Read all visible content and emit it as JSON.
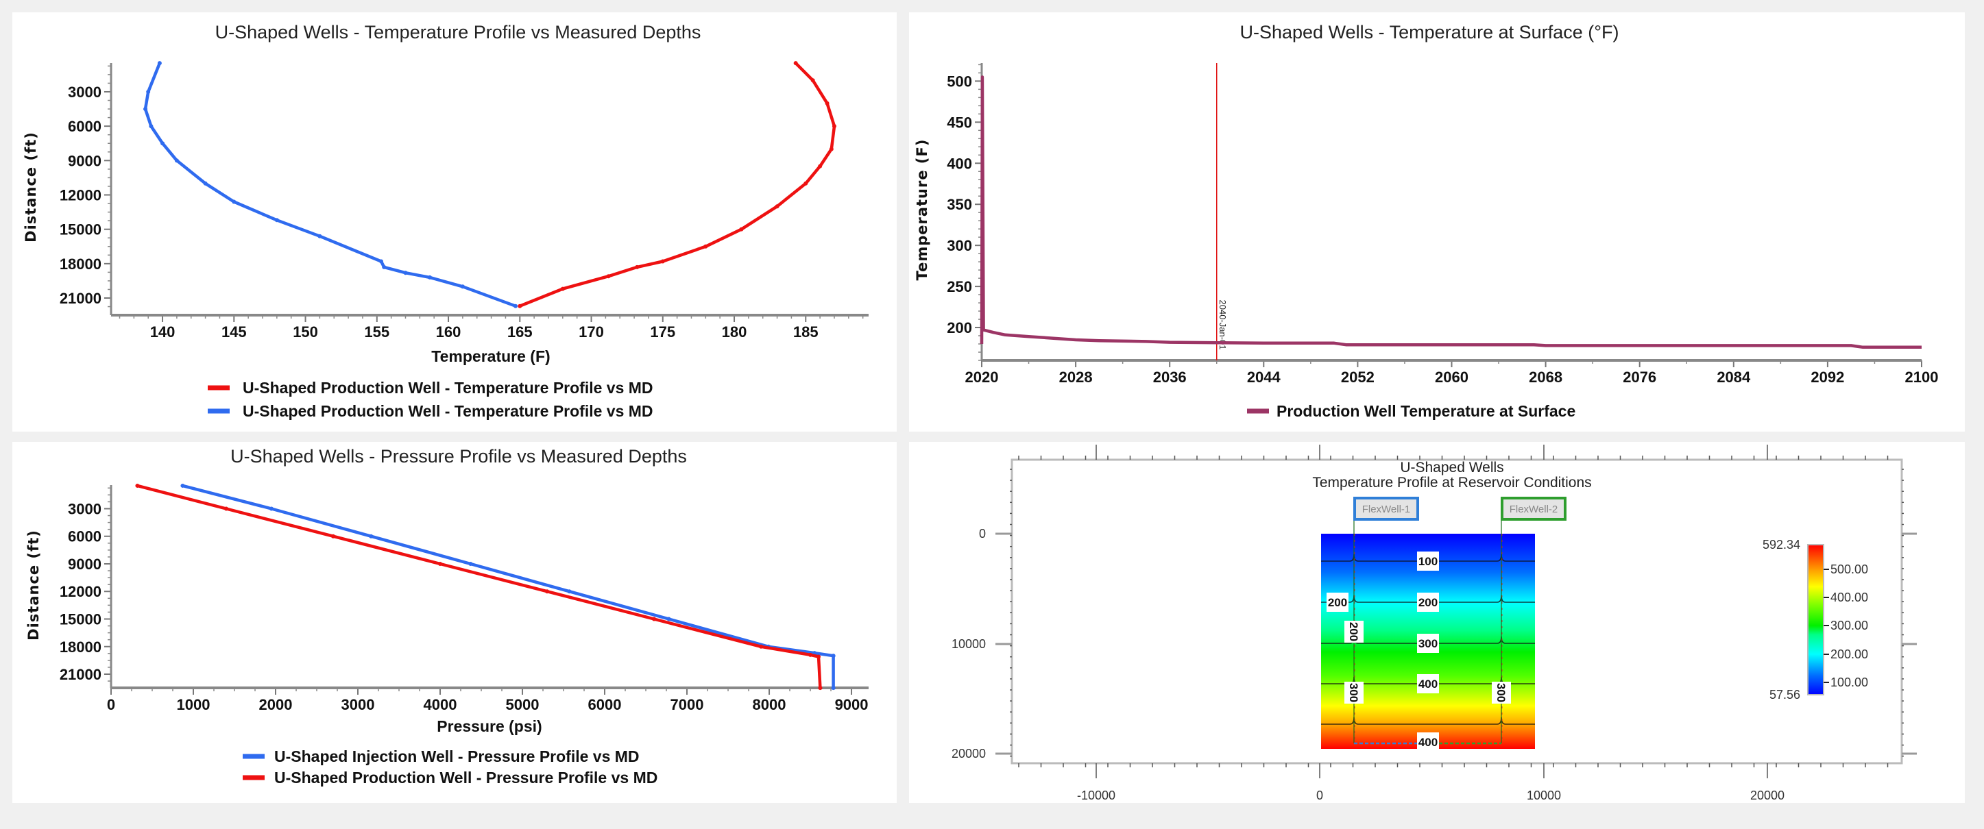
{
  "chart_data": [
    {
      "id": "temp_profile",
      "type": "line",
      "title": "U-Shaped Wells - Temperature Profile vs Measured Depths",
      "xlabel": "Temperature (F)",
      "ylabel": "Distance (ft)",
      "xlim": [
        136.4,
        189.4
      ],
      "ylim": [
        490,
        22494
      ],
      "y_inverted": true,
      "xticks": [
        140,
        145,
        150,
        155,
        160,
        165,
        170,
        175,
        180,
        185
      ],
      "x_minor": 1,
      "yticks": [
        3000,
        6000,
        9000,
        12000,
        15000,
        18000,
        21000
      ],
      "y_minor": 750,
      "legend_position": "bottom",
      "series": [
        {
          "name": "U-Shaped Production Well - Temperature Profile vs MD",
          "color": "#ee1111",
          "points": [
            [
              184.3,
              500
            ],
            [
              185.5,
              2000
            ],
            [
              186.5,
              4000
            ],
            [
              187,
              6000
            ],
            [
              186.8,
              8000
            ],
            [
              186,
              9500
            ],
            [
              185,
              11000
            ],
            [
              183,
              13000
            ],
            [
              180.5,
              15000
            ],
            [
              178,
              16500
            ],
            [
              175,
              17800
            ],
            [
              173.2,
              18300
            ],
            [
              171.2,
              19100
            ],
            [
              168,
              20200
            ],
            [
              165,
              21700
            ]
          ]
        },
        {
          "name": "U-Shaped Production Well - Temperature Profile vs MD",
          "color": "#2f6bef",
          "points": [
            [
              139.8,
              500
            ],
            [
              139,
              3000
            ],
            [
              138.8,
              4500
            ],
            [
              139.2,
              6000
            ],
            [
              140,
              7500
            ],
            [
              141,
              9000
            ],
            [
              143,
              11000
            ],
            [
              145,
              12600
            ],
            [
              148,
              14200
            ],
            [
              151,
              15600
            ],
            [
              155.3,
              17800
            ],
            [
              155.5,
              18300
            ],
            [
              157,
              18800
            ],
            [
              158.7,
              19200
            ],
            [
              161,
              20000
            ],
            [
              164.7,
              21700
            ]
          ]
        }
      ]
    },
    {
      "id": "surface_temp",
      "type": "line",
      "title": "U-Shaped Wells - Temperature at Surface (°F)",
      "xlabel": "",
      "ylabel": "Temperature (F)",
      "xlim": [
        2020,
        2100
      ],
      "ylim": [
        160,
        522
      ],
      "y_inverted": false,
      "xticks": [
        2020,
        2028,
        2036,
        2044,
        2052,
        2060,
        2068,
        2076,
        2084,
        2092,
        2100
      ],
      "x_minor": 8,
      "yticks": [
        200,
        250,
        300,
        350,
        400,
        450,
        500
      ],
      "y_minor": 10,
      "legend_position": "bottom",
      "marker": {
        "x": 2040,
        "label": "2040-Jan-01",
        "color": "#e01010"
      },
      "series": [
        {
          "name": "Production Well Temperature at Surface",
          "color": "#9c3565",
          "points": [
            [
              2020,
              180
            ],
            [
              2020.05,
              505
            ],
            [
              2020.15,
              197
            ],
            [
              2021,
              194
            ],
            [
              2022,
              191
            ],
            [
              2024,
              189
            ],
            [
              2026,
              187
            ],
            [
              2028,
              185
            ],
            [
              2030,
              184
            ],
            [
              2034,
              183
            ],
            [
              2036,
              182
            ],
            [
              2044,
              181
            ],
            [
              2050,
              181
            ],
            [
              2051,
              179
            ],
            [
              2067,
              179
            ],
            [
              2068,
              178
            ],
            [
              2094,
              178
            ],
            [
              2095,
              176
            ],
            [
              2100,
              176
            ]
          ]
        }
      ]
    },
    {
      "id": "pressure_profile",
      "type": "line",
      "title": "U-Shaped Wells - Pressure Profile vs Measured Depths",
      "xlabel": "Pressure (psi)",
      "ylabel": "Distance (ft)",
      "xlim": [
        0,
        9208
      ],
      "ylim": [
        430,
        22490
      ],
      "y_inverted": true,
      "xticks": [
        0,
        1000,
        2000,
        3000,
        4000,
        5000,
        6000,
        7000,
        8000,
        9000
      ],
      "x_minor": 250,
      "yticks": [
        3000,
        6000,
        9000,
        12000,
        15000,
        18000,
        21000
      ],
      "y_minor": 750,
      "legend_position": "bottom",
      "series": [
        {
          "name": "U-Shaped Injection Well - Pressure Profile vs MD",
          "color": "#2f6bef",
          "points": [
            [
              870,
              500
            ],
            [
              1950,
              3000
            ],
            [
              3160,
              6000
            ],
            [
              4370,
              9000
            ],
            [
              5570,
              12000
            ],
            [
              6780,
              15000
            ],
            [
              7990,
              18000
            ],
            [
              8550,
              18700
            ],
            [
              8780,
              19000
            ],
            [
              8780,
              22500
            ]
          ]
        },
        {
          "name": "U-Shaped Production Well - Pressure Profile vs MD",
          "color": "#ee1111",
          "points": [
            [
              320,
              500
            ],
            [
              1400,
              3000
            ],
            [
              2700,
              6000
            ],
            [
              4000,
              9000
            ],
            [
              5300,
              12000
            ],
            [
              6600,
              15000
            ],
            [
              7900,
              18000
            ],
            [
              8500,
              18900
            ],
            [
              8600,
              19100
            ],
            [
              8620,
              22500
            ]
          ]
        }
      ]
    },
    {
      "id": "reservoir_temp",
      "type": "heatmap",
      "title_lines": [
        "U-Shaped Wells",
        "Temperature Profile at Reservoir Conditions"
      ],
      "xticks": [
        "-10000",
        "0",
        "10000",
        "20000"
      ],
      "yticks": [
        "0",
        "10000",
        "20000"
      ],
      "wells": [
        {
          "name": "FlexWell-1",
          "color": "#2f7fd8",
          "x": 1530
        },
        {
          "name": "FlexWell-2",
          "color": "#2e9e2e",
          "x": 8100
        }
      ],
      "contours": [
        "100",
        "200",
        "300",
        "400"
      ],
      "contour_labels": {
        "c100": "100",
        "c200_left": "200",
        "c200": "200",
        "c300": "300",
        "c400": "400",
        "c400_bottom": "400",
        "w1_200": "200",
        "w1_300": "300",
        "w2_300": "300"
      },
      "colorbar": {
        "max": "592.34",
        "min": "57.56",
        "ticks": [
          "500.00",
          "400.00",
          "300.00",
          "200.00",
          "100.00"
        ]
      }
    }
  ]
}
